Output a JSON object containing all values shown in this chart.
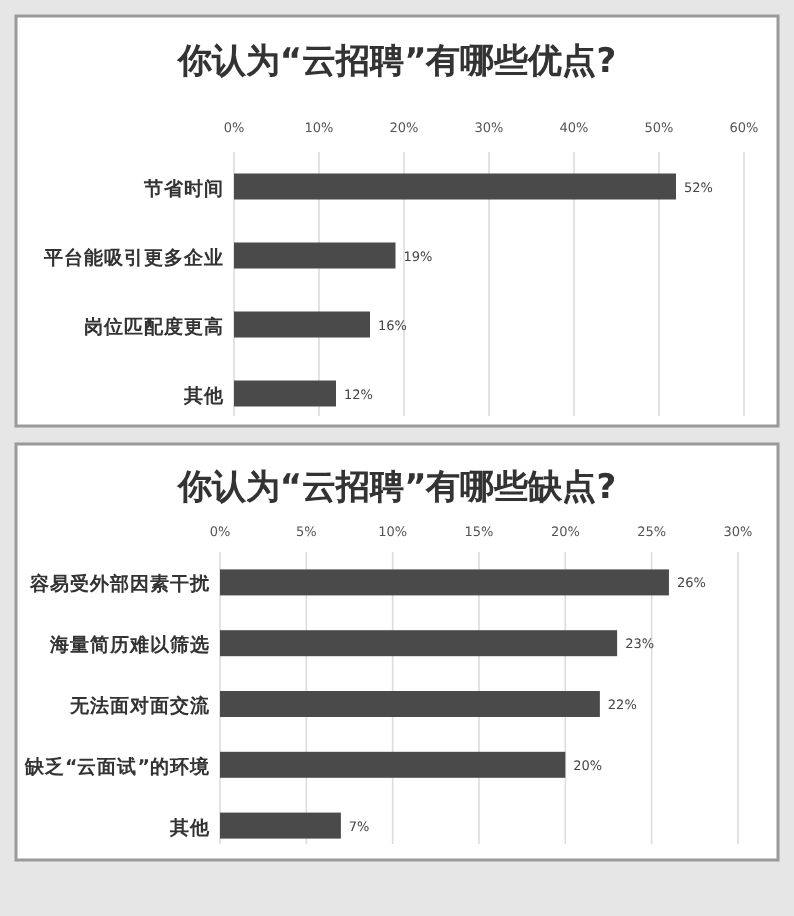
{
  "chart_data": [
    {
      "type": "bar",
      "orientation": "horizontal",
      "title": "你认为“云招聘”有哪些优点?",
      "categories": [
        "节省时间",
        "平台能吸引更多企业",
        "岗位匹配度更高",
        "其他"
      ],
      "values": [
        52,
        19,
        16,
        12
      ],
      "value_labels": [
        "52%",
        "19%",
        "16%",
        "12%"
      ],
      "color": "#4a4a4a",
      "xlim": [
        0,
        60
      ],
      "xticks": [
        {
          "value": 0,
          "label": "0%"
        },
        {
          "value": 10,
          "label": "10%"
        },
        {
          "value": 20,
          "label": "20%"
        },
        {
          "value": 30,
          "label": "30%"
        },
        {
          "value": 40,
          "label": "40%"
        },
        {
          "value": 50,
          "label": "50%"
        },
        {
          "value": 60,
          "label": "60%"
        }
      ],
      "grid": "x"
    },
    {
      "type": "bar",
      "orientation": "horizontal",
      "title": "你认为“云招聘”有哪些缺点?",
      "categories": [
        "容易受外部因素干扰",
        "海量简历难以筛选",
        "无法面对面交流",
        "缺乏“云面试”的环境",
        "其他"
      ],
      "values": [
        26,
        23,
        22,
        20,
        7
      ],
      "value_labels": [
        "26%",
        "23%",
        "22%",
        "20%",
        "7%"
      ],
      "color": "#4a4a4a",
      "xlim": [
        0,
        30
      ],
      "xticks": [
        {
          "value": 0,
          "label": "0%"
        },
        {
          "value": 5,
          "label": "5%"
        },
        {
          "value": 10,
          "label": "10%"
        },
        {
          "value": 15,
          "label": "15%"
        },
        {
          "value": 20,
          "label": "20%"
        },
        {
          "value": 25,
          "label": "25%"
        },
        {
          "value": 30,
          "label": "30%"
        }
      ],
      "grid": "x"
    }
  ]
}
